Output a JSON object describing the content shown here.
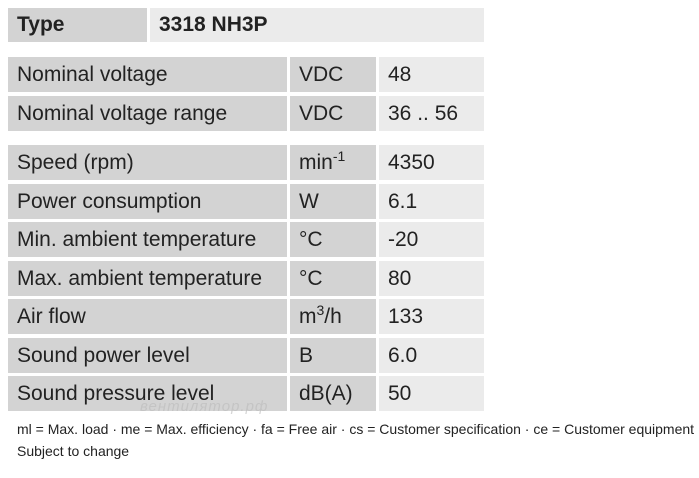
{
  "header": {
    "label": "Type",
    "value": "3318 NH3P"
  },
  "groups": [
    [
      {
        "label": "Nominal voltage",
        "unit": "VDC",
        "value": "48"
      },
      {
        "label": "Nominal voltage range",
        "unit": "VDC",
        "value": "36 .. 56"
      }
    ],
    [
      {
        "label": "Speed (rpm)",
        "unit": {
          "base": "min",
          "sup": "-1"
        },
        "value": "4350"
      },
      {
        "label": "Power consumption",
        "unit": "W",
        "value": "6.1"
      },
      {
        "label": "Min. ambient temperature",
        "unit": "°C",
        "value": "-20"
      },
      {
        "label": "Max. ambient temperature",
        "unit": "°C",
        "value": "80"
      },
      {
        "label": "Air flow",
        "unit": {
          "base": "m",
          "sup": "3",
          "tail": "/h"
        },
        "value": "133"
      },
      {
        "label": "Sound power level",
        "unit": "B",
        "value": "6.0"
      },
      {
        "label": "Sound pressure level",
        "unit": "dB(A)",
        "value": "50"
      }
    ]
  ],
  "watermark": "вентилятор.рф",
  "footnotes": [
    "ml = Max. load · me = Max. efficiency · fa = Free air · cs = Customer specification · ce = Customer equipment",
    "Subject to change"
  ]
}
